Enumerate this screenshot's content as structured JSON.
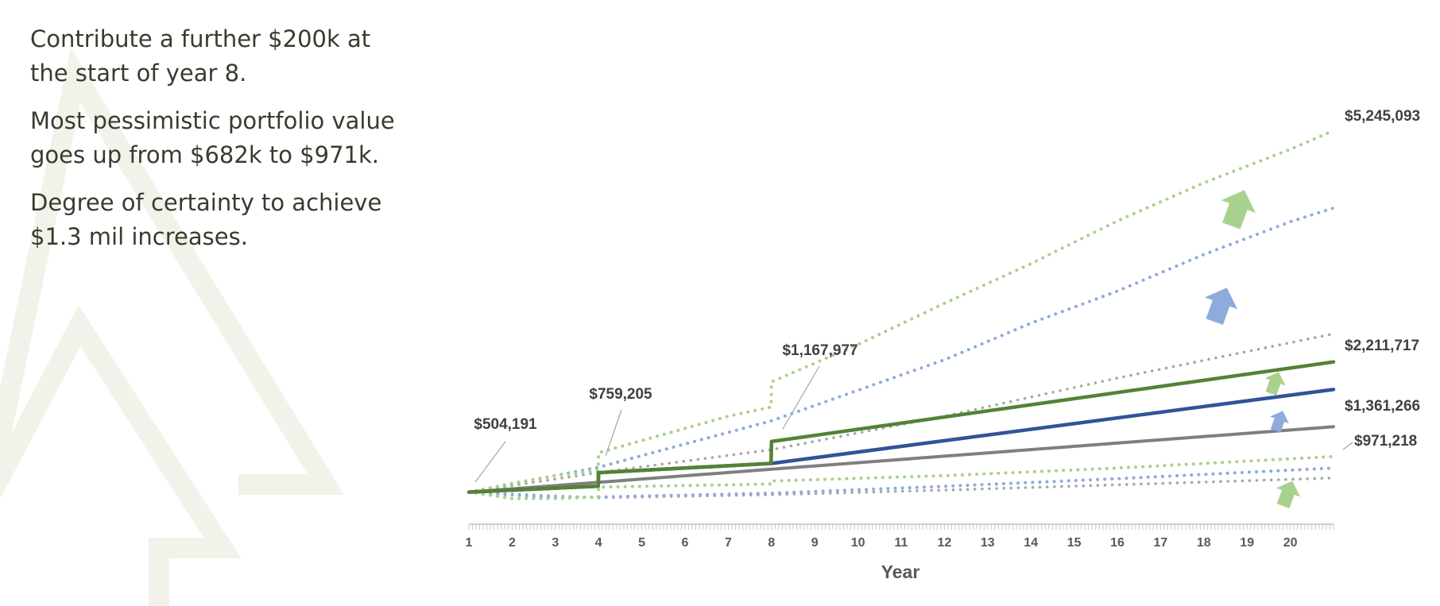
{
  "notes": [
    "Contribute a further $200k at the start of year 8.",
    "Most pessimistic portfolio value goes up from $682k to $971k.",
    "Degree of certainty to achieve $1.3 mil increases."
  ],
  "colors": {
    "green_dark": "#548235",
    "green_light": "#a9d18e",
    "blue_dark": "#2f5597",
    "blue_light": "#8faadc",
    "gray": "#7f7f7f",
    "gray_light": "#a6a6a6",
    "text": "#3a3a2e",
    "logo": "#f3f2ea"
  },
  "chart_data": {
    "type": "line",
    "xlabel": "Year",
    "x_ticks": [
      1,
      2,
      3,
      4,
      5,
      6,
      7,
      8,
      9,
      10,
      11,
      12,
      13,
      14,
      15,
      16,
      17,
      18,
      19,
      20
    ],
    "xlim": [
      1,
      21
    ],
    "ylim": [
      0,
      5500000
    ],
    "legend": "none",
    "series": [
      {
        "key": "green_median",
        "style": "solid",
        "color": "#548235",
        "width": 4.5,
        "x": [
          1,
          3.99,
          4,
          7.99,
          8,
          21
        ],
        "y": [
          504191,
          582000,
          759205,
          880000,
          1167977,
          2211717
        ]
      },
      {
        "key": "blue_median",
        "style": "solid",
        "color": "#2f5597",
        "width": 4.5,
        "x": [
          1,
          3.99,
          4,
          7.99,
          8,
          21
        ],
        "y": [
          504191,
          582000,
          759205,
          880000,
          880000,
          1850000
        ]
      },
      {
        "key": "gray_median",
        "style": "solid",
        "color": "#7f7f7f",
        "width": 4,
        "x": [
          1,
          21
        ],
        "y": [
          504191,
          1361266
        ]
      },
      {
        "key": "green_high",
        "style": "dotted",
        "color": "#a9d18e",
        "width": 4,
        "x": [
          1,
          2,
          3,
          3.99,
          4,
          5,
          6,
          7,
          7.99,
          8,
          10,
          12,
          14,
          16,
          18,
          20,
          21
        ],
        "y": [
          504191,
          620000,
          720000,
          790000,
          1020000,
          1180000,
          1340000,
          1500000,
          1620000,
          1950000,
          2440000,
          2980000,
          3500000,
          4060000,
          4560000,
          5000000,
          5245093
        ]
      },
      {
        "key": "blue_high",
        "style": "dotted",
        "color": "#8faadc",
        "width": 4,
        "x": [
          1,
          4,
          8,
          10,
          12,
          14,
          16,
          18,
          20,
          21
        ],
        "y": [
          504191,
          830000,
          1440000,
          1840000,
          2240000,
          2720000,
          3140000,
          3620000,
          4050000,
          4230000
        ]
      },
      {
        "key": "gray_high",
        "style": "dotted",
        "color": "#a6a6a6",
        "width": 3.5,
        "x": [
          1,
          4,
          8,
          12,
          16,
          21
        ],
        "y": [
          504191,
          760000,
          1060000,
          1500000,
          2000000,
          2580000
        ]
      },
      {
        "key": "green_low",
        "style": "dotted",
        "color": "#a9d18e",
        "width": 4,
        "x": [
          1,
          2,
          3,
          3.99,
          4,
          7.99,
          8,
          12,
          16,
          21
        ],
        "y": [
          504191,
          420000,
          420000,
          440000,
          570000,
          610000,
          650000,
          720000,
          820000,
          971218
        ]
      },
      {
        "key": "blue_low",
        "style": "dotted",
        "color": "#8faadc",
        "width": 4,
        "x": [
          1,
          3,
          4,
          8,
          12,
          16,
          21
        ],
        "y": [
          504191,
          430000,
          440000,
          490000,
          580000,
          680000,
          820000
        ]
      },
      {
        "key": "gray_low",
        "style": "dotted",
        "color": "#a6a6a6",
        "width": 3.5,
        "x": [
          1,
          4,
          8,
          12,
          16,
          21
        ],
        "y": [
          504191,
          430000,
          470000,
          530000,
          600000,
          690000
        ]
      }
    ],
    "labels": [
      {
        "text": "$504,191",
        "x": 1,
        "y": 504191,
        "color": "#2f4a7c"
      },
      {
        "text": "$759,205",
        "x": 4,
        "y": 759205,
        "color": "#404040"
      },
      {
        "text": "$1,167,977",
        "x": 8,
        "y": 1167977,
        "color": "#404040"
      },
      {
        "text": "$5,245,093",
        "x": 21,
        "y": 5245093,
        "color": "#404040"
      },
      {
        "text": "$2,211,717",
        "x": 21,
        "y": 2211717,
        "color": "#404040"
      },
      {
        "text": "$1,361,266",
        "x": 21,
        "y": 1361266,
        "color": "#404040"
      },
      {
        "text": "$971,218",
        "x": 21,
        "y": 971218,
        "color": "#404040"
      }
    ],
    "arrows": [
      {
        "color": "#a9d18e",
        "x": 18.8,
        "y": 4250000,
        "size": 1.0
      },
      {
        "color": "#8faadc",
        "x": 18.4,
        "y": 2980000,
        "size": 0.95
      },
      {
        "color": "#a9d18e",
        "x": 19.65,
        "y": 1950000,
        "size": 0.6
      },
      {
        "color": "#8faadc",
        "x": 19.75,
        "y": 1450000,
        "size": 0.55
      },
      {
        "color": "#a9d18e",
        "x": 19.95,
        "y": 500000,
        "size": 0.7
      }
    ]
  }
}
